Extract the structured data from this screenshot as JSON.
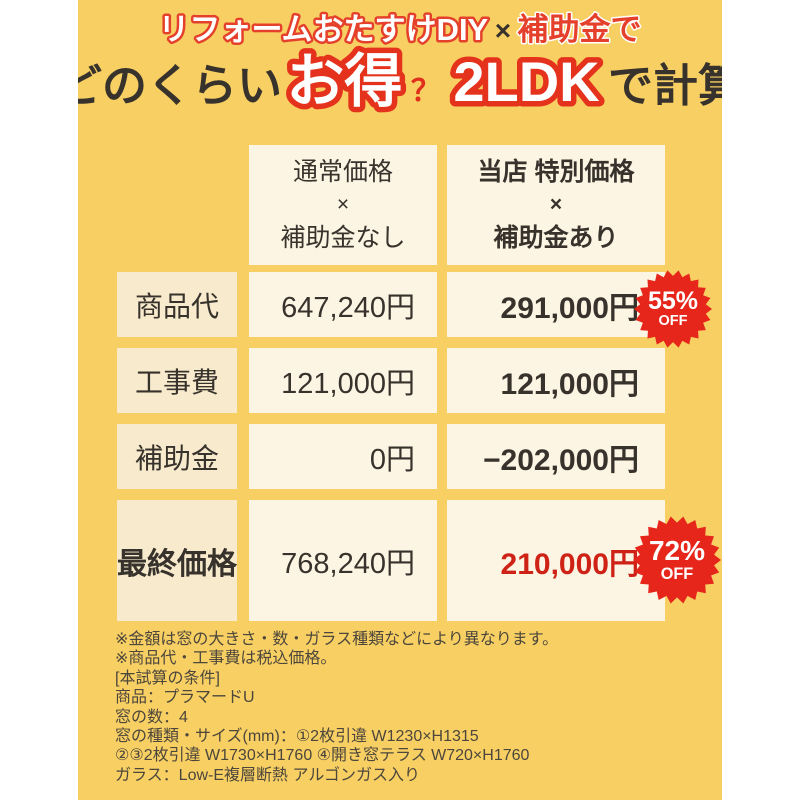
{
  "colors": {
    "background": "#f7cf63",
    "cell_cream": "#fcf5e3",
    "cell_beige": "#f8ebcd",
    "accent_red": "#e5402b",
    "badge_red": "#e7261b",
    "price_red": "#cf2217",
    "text_dark": "#37322c"
  },
  "title": {
    "line1": {
      "part1": "リフォームおたすけDIY",
      "times": "×",
      "part2": "補助金で"
    },
    "line2": {
      "part1": "どのくらい",
      "highlight1": "お得",
      "question": "？",
      "highlight2": "2LDK",
      "part2": "で計算"
    }
  },
  "table": {
    "columns": [
      {
        "line1": "通常価格",
        "line2": "×",
        "line3": "補助金なし"
      },
      {
        "line1": "当店 特別価格",
        "line2": "×",
        "line3": "補助金あり"
      }
    ],
    "rows": [
      {
        "label": "商品代",
        "normal": "647,240円",
        "special": "291,000円",
        "badge": {
          "percent": "55%",
          "off": "OFF"
        }
      },
      {
        "label": "工事費",
        "normal": "121,000円",
        "special": "121,000円"
      },
      {
        "label": "補助金",
        "normal": "0円",
        "special": "−202,000円"
      },
      {
        "label": "最終価格",
        "normal": "768,240円",
        "special": "210,000円",
        "badge": {
          "percent": "72%",
          "off": "OFF"
        }
      }
    ]
  },
  "footer": {
    "lines": [
      "※金額は窓の大きさ・数・ガラス種類などにより異なります。",
      "※商品代・工事費は税込価格。",
      "[本試算の条件]",
      "商品：プラマードU",
      "窓の数：4",
      "窓の種類・サイズ(mm)：①2枚引違 W1230×H1315",
      "②③2枚引違 W1730×H1760 ④開き窓テラス W720×H1760",
      "ガラス：Low-E複層断熱 アルゴンガス入り"
    ]
  }
}
